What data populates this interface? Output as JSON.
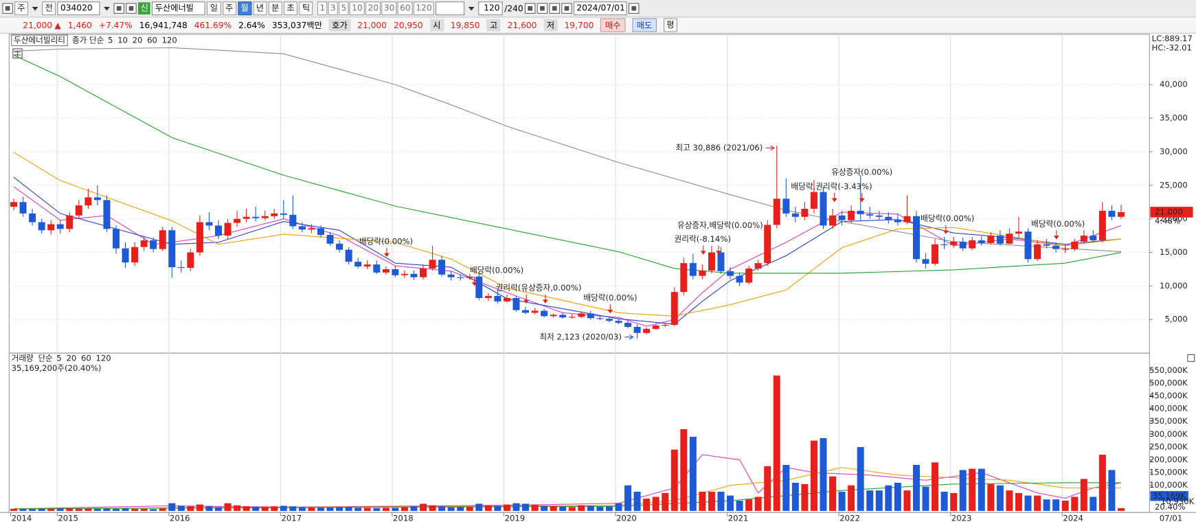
{
  "toolbar": {
    "mode1": "주",
    "mode2": "전",
    "code": "034020",
    "badge": "신",
    "name": "두산에너빌",
    "periods": [
      "일",
      "주",
      "월",
      "년",
      "분",
      "초",
      "틱"
    ],
    "intervals": [
      "1",
      "3",
      "5",
      "10",
      "20",
      "30",
      "60",
      "120"
    ],
    "count": "120",
    "total": "/240",
    "date": "2024/07/01"
  },
  "quote_bar": {
    "price": "21,000",
    "arrow": "▲",
    "change": "1,460",
    "change_pct": "+7.47%",
    "volume": "16,941,748",
    "volume_pct": "461.69%",
    "turnover": "2.64%",
    "amount": "353,037백만",
    "ask_label": "호가",
    "ask": "21,000",
    "bid": "20,950",
    "open_label": "시",
    "open": "19,850",
    "high_label": "고",
    "high": "21,600",
    "low_label": "저",
    "low": "19,700",
    "buy": "매수",
    "sell": "매도",
    "avg": "평"
  },
  "chart_data": [
    {
      "type": "candlestick",
      "title": "두산에너빌리티",
      "ma_label": "종가 단순",
      "open": [
        21800,
        22500,
        20800,
        19500,
        18300,
        19200,
        18500,
        20500,
        22000,
        23200,
        22800,
        18500,
        15600,
        13500,
        15800,
        16800,
        15500,
        18300,
        12800,
        12700,
        15000,
        19500,
        19000,
        17500,
        19400,
        20000,
        20300,
        20100,
        20400,
        20800,
        20600,
        18900,
        18400,
        18600,
        17600,
        16300,
        15400,
        13600,
        12900,
        13200,
        12000,
        12500,
        11600,
        11800,
        11300,
        12600,
        13900,
        11700,
        11300,
        11200,
        11400,
        8200,
        8500,
        7700,
        8200,
        6400,
        6000,
        6300,
        5500,
        5700,
        5300,
        5400,
        5900,
        5200,
        5100,
        4800,
        4500,
        3900,
        3000,
        3600,
        4100,
        4200,
        9100,
        13400,
        11500,
        12300,
        15000,
        12200,
        11500,
        10500,
        12600,
        13400,
        19100,
        23000,
        20800,
        20300,
        21500,
        24000,
        19000,
        20500,
        19800,
        21200,
        20700,
        20500,
        20300,
        19800,
        19500,
        20400,
        14000,
        13300,
        16200,
        16100,
        16600,
        15600,
        16800,
        16400,
        17500,
        16300,
        17800,
        18100,
        14000,
        16200,
        16000,
        15500,
        15500,
        16600,
        17500,
        16800,
        21200,
        20300
      ],
      "high": [
        23000,
        23300,
        21500,
        20000,
        19800,
        19800,
        21000,
        22800,
        24500,
        25000,
        23500,
        19000,
        16500,
        16500,
        17500,
        17200,
        18800,
        18800,
        13800,
        15500,
        20500,
        21000,
        19800,
        20000,
        21200,
        21500,
        21800,
        21200,
        21500,
        22800,
        23500,
        19500,
        19200,
        19000,
        18000,
        16800,
        15800,
        14200,
        13800,
        13800,
        12900,
        13000,
        12300,
        12300,
        13200,
        16000,
        14500,
        12200,
        11800,
        11800,
        11900,
        8900,
        9100,
        8700,
        8500,
        6900,
        6700,
        6600,
        5900,
        6000,
        5800,
        6200,
        6300,
        5600,
        5400,
        5100,
        4800,
        4300,
        3800,
        4300,
        4500,
        9800,
        14200,
        14800,
        13200,
        16000,
        15800,
        12800,
        12000,
        13000,
        13900,
        19800,
        30886,
        26000,
        21800,
        22500,
        25800,
        24700,
        21500,
        21200,
        22000,
        26500,
        21800,
        21200,
        21000,
        20800,
        23500,
        21200,
        14900,
        17000,
        17300,
        17300,
        17200,
        17300,
        17400,
        18000,
        18300,
        18600,
        20300,
        18600,
        16800,
        17000,
        16500,
        16200,
        17000,
        18300,
        18300,
        22500,
        22000,
        22100
      ],
      "low": [
        21300,
        20300,
        19000,
        17800,
        17700,
        17800,
        18000,
        20000,
        21500,
        22000,
        18000,
        14800,
        12700,
        13000,
        15200,
        15000,
        15200,
        11200,
        12000,
        12200,
        14500,
        18300,
        17000,
        17000,
        18800,
        19500,
        19600,
        19800,
        20000,
        20000,
        18500,
        18000,
        17900,
        17200,
        16000,
        15000,
        13200,
        12600,
        12500,
        11800,
        11700,
        11300,
        11200,
        10900,
        11000,
        12300,
        11400,
        10800,
        10800,
        10900,
        7900,
        7800,
        7400,
        7500,
        6200,
        5800,
        5800,
        5300,
        5300,
        5100,
        5100,
        5200,
        5000,
        4900,
        4600,
        4300,
        3700,
        2123,
        2800,
        3500,
        3900,
        4000,
        8600,
        11000,
        11000,
        11900,
        11800,
        11000,
        10000,
        10200,
        12300,
        13000,
        18600,
        20300,
        19500,
        19800,
        20800,
        18500,
        18500,
        19000,
        19400,
        19800,
        20000,
        19900,
        19300,
        19000,
        19200,
        13500,
        12600,
        13000,
        15500,
        15700,
        15200,
        15300,
        16000,
        16200,
        16000,
        16200,
        17200,
        13500,
        13700,
        15600,
        15000,
        14900,
        15200,
        16300,
        16500,
        16500,
        19800,
        20000
      ],
      "close": [
        22500,
        20800,
        19500,
        18300,
        19200,
        18500,
        20500,
        22000,
        23200,
        22800,
        18500,
        15600,
        13500,
        15800,
        16800,
        15500,
        18300,
        12800,
        12700,
        15000,
        19500,
        19000,
        17500,
        19400,
        20000,
        20300,
        20100,
        20400,
        20800,
        20600,
        18900,
        18400,
        18600,
        17600,
        16300,
        15400,
        13600,
        12900,
        13200,
        12000,
        12500,
        11600,
        11800,
        11300,
        12600,
        13900,
        11700,
        11300,
        11200,
        11400,
        8200,
        8500,
        7700,
        8200,
        6400,
        6000,
        6300,
        5500,
        5700,
        5300,
        5400,
        5900,
        5200,
        5100,
        4800,
        4500,
        3900,
        3000,
        3600,
        4100,
        4200,
        9100,
        13400,
        11500,
        12300,
        15000,
        12200,
        11500,
        10500,
        12600,
        13400,
        19100,
        23000,
        20800,
        20300,
        21500,
        24000,
        19000,
        20500,
        19800,
        21200,
        20700,
        20500,
        20300,
        19800,
        19500,
        20400,
        14000,
        13300,
        16200,
        16100,
        16600,
        15600,
        16800,
        16400,
        17500,
        16300,
        17800,
        18100,
        14000,
        16200,
        16000,
        15500,
        15500,
        16600,
        17500,
        16800,
        21200,
        20300,
        21000
      ],
      "up_color": "#e8201b",
      "down_color": "#1f5ad6",
      "ylim": [
        0,
        47500
      ],
      "yticks": [
        {
          "value": 5000,
          "label": "5,000"
        },
        {
          "value": 10000,
          "label": "10,000"
        },
        {
          "value": 15000,
          "label": "15,000"
        },
        {
          "value": 20000,
          "label": "20,000"
        },
        {
          "value": 25000,
          "label": "25,000"
        },
        {
          "value": 30000,
          "label": "30,000"
        },
        {
          "value": 35000,
          "label": "35,000"
        },
        {
          "value": 40000,
          "label": "40,000"
        }
      ],
      "grid": true,
      "ma": [
        {
          "name": "5",
          "color": "#e03cc0",
          "x": [
            0,
            5,
            10,
            15,
            17,
            22,
            29,
            35,
            41,
            47,
            53,
            59,
            65,
            68,
            71,
            74,
            77,
            83,
            89,
            95,
            101,
            107,
            113,
            119
          ],
          "values": [
            24800,
            19800,
            20500,
            16200,
            16500,
            17500,
            20000,
            17500,
            13000,
            12200,
            9000,
            6000,
            5300,
            4000,
            5000,
            9000,
            12500,
            16500,
            21000,
            20700,
            16000,
            17000,
            16000,
            19000
          ]
        },
        {
          "name": "10",
          "color": "#2a3fd0",
          "x": [
            0,
            5,
            17,
            22,
            29,
            35,
            41,
            47,
            53,
            59,
            65,
            71,
            74,
            77,
            83,
            89,
            95,
            101,
            107,
            113,
            119
          ],
          "values": [
            26200,
            20800,
            16200,
            16500,
            19600,
            18300,
            13400,
            12800,
            8100,
            6600,
            5100,
            4300,
            7700,
            10800,
            14500,
            19600,
            19900,
            17900,
            17200,
            16200,
            17000
          ]
        },
        {
          "name": "20",
          "color": "#f0a000",
          "x": [
            0,
            5,
            17,
            22,
            29,
            41,
            47,
            53,
            65,
            71,
            77,
            83,
            89,
            95,
            101,
            107,
            113,
            119
          ],
          "values": [
            29900,
            25700,
            19700,
            16200,
            17700,
            16500,
            14000,
            9700,
            6000,
            5500,
            7200,
            9400,
            15700,
            18500,
            18700,
            17400,
            16000,
            17000
          ]
        },
        {
          "name": "60",
          "color": "#22a02a",
          "x": [
            0,
            5,
            17,
            29,
            41,
            53,
            65,
            71,
            77,
            89,
            101,
            113,
            119
          ],
          "values": [
            44400,
            41200,
            32100,
            26500,
            21900,
            18500,
            15100,
            12600,
            11900,
            11900,
            12400,
            13400,
            15000
          ]
        },
        {
          "name": "120",
          "color": "#8c8c8c",
          "x": [
            0,
            5,
            17,
            29,
            41,
            47,
            53,
            65,
            77,
            83,
            89,
            101,
            113,
            119
          ],
          "values": [
            45000,
            45300,
            45500,
            44600,
            40000,
            37000,
            33800,
            28400,
            23600,
            21300,
            19600,
            16600,
            15600,
            15100
          ]
        }
      ],
      "last_label": "21,000",
      "last_pct": "4.48%",
      "lc": "LC:889.17",
      "hc": "HC:-32.01",
      "high_note": "최고 30,886 (2021/06)",
      "low_note": "최저 2,123 (2020/03)",
      "annotations": [
        "배당락(0.00%)",
        "배당락(0.00%)",
        "권리락(유상증자,0.00%)",
        "배당락(0.00%)",
        "유상증자,배당락(0.00%)",
        "권리락(-8.14%)",
        "유상증자(0.00%)",
        "배당락,권리락(-3.43%)",
        "배당락(0.00%)",
        "배당락(0.00%)"
      ]
    },
    {
      "type": "bar",
      "title": "거래량",
      "ma_label": "단순",
      "info": "35,169,200주(20.40%)",
      "categories": [
        "2014",
        null,
        null,
        null,
        null,
        "2015",
        null,
        null,
        null,
        null,
        null,
        null,
        null,
        null,
        null,
        null,
        null,
        "2016",
        null,
        null,
        null,
        null,
        null,
        null,
        null,
        null,
        null,
        null,
        null,
        "2017",
        null,
        null,
        null,
        null,
        null,
        null,
        null,
        null,
        null,
        null,
        null,
        "2018",
        null,
        null,
        null,
        null,
        null,
        null,
        null,
        null,
        null,
        null,
        null,
        "2019",
        null,
        null,
        null,
        null,
        null,
        null,
        null,
        null,
        null,
        null,
        null,
        "2020",
        null,
        null,
        null,
        null,
        null,
        null,
        null,
        null,
        null,
        null,
        null,
        "2021",
        null,
        null,
        null,
        null,
        null,
        null,
        null,
        null,
        null,
        null,
        null,
        "2022",
        null,
        null,
        null,
        null,
        null,
        null,
        null,
        null,
        null,
        null,
        null,
        "2023",
        null,
        null,
        null,
        null,
        null,
        null,
        null,
        null,
        null,
        null,
        null,
        "2024",
        null,
        null,
        null,
        null,
        null,
        null
      ],
      "values": [
        8000,
        7000,
        7000,
        8000,
        8000,
        9000,
        9000,
        8000,
        9000,
        8000,
        9000,
        8000,
        9000,
        8000,
        8000,
        7000,
        9000,
        30000,
        20000,
        18000,
        25000,
        18000,
        15000,
        30000,
        22000,
        18000,
        16000,
        17000,
        18000,
        20000,
        18000,
        15000,
        14000,
        12000,
        13000,
        14000,
        15000,
        12000,
        12000,
        11000,
        12000,
        12000,
        14000,
        18000,
        28000,
        22000,
        18000,
        14000,
        15000,
        16000,
        28000,
        22000,
        20000,
        25000,
        30000,
        28000,
        24000,
        20000,
        18000,
        16000,
        15000,
        22000,
        20000,
        16000,
        18000,
        30000,
        100000,
        75000,
        48000,
        55000,
        70000,
        240000,
        320000,
        290000,
        75000,
        75000,
        75000,
        60000,
        40000,
        45000,
        55000,
        175000,
        530000,
        180000,
        110000,
        105000,
        275000,
        285000,
        135000,
        75000,
        100000,
        250000,
        80000,
        80000,
        100000,
        110000,
        80000,
        180000,
        95000,
        190000,
        75000,
        70000,
        160000,
        165000,
        165000,
        105000,
        100000,
        80000,
        70000,
        60000,
        60000,
        45000,
        45000,
        40000,
        55000,
        125000,
        55000,
        220000,
        160000,
        10930
      ],
      "ylim": [
        0,
        600000
      ],
      "yticks": [
        {
          "value": 50000,
          "label": "50,000K"
        },
        {
          "value": 100000,
          "label": "100,000K"
        },
        {
          "value": 150000,
          "label": "150,000K"
        },
        {
          "value": 200000,
          "label": "200,000K"
        },
        {
          "value": 250000,
          "label": "250,000K"
        },
        {
          "value": 300000,
          "label": "300,000K"
        },
        {
          "value": 350000,
          "label": "350,000K"
        },
        {
          "value": 400000,
          "label": "400,000K"
        },
        {
          "value": 450000,
          "label": "450,000K"
        },
        {
          "value": 500000,
          "label": "500,000K"
        },
        {
          "value": 550000,
          "label": "550,000K"
        }
      ],
      "ma": [
        {
          "name": "5",
          "color": "#e03cc0",
          "x": [
            0,
            17,
            29,
            53,
            65,
            71,
            74,
            78,
            80,
            83,
            86,
            92,
            98,
            104,
            110,
            113,
            116,
            119
          ],
          "values": [
            8000,
            20000,
            15000,
            22000,
            30000,
            90000,
            220000,
            200000,
            70000,
            170000,
            150000,
            140000,
            120000,
            150000,
            70000,
            50000,
            90000,
            110000
          ]
        },
        {
          "name": "20",
          "color": "#f0a000",
          "x": [
            0,
            17,
            41,
            65,
            71,
            77,
            83,
            89,
            95,
            101,
            107,
            113,
            119
          ],
          "values": [
            8000,
            12000,
            16000,
            22000,
            40000,
            100000,
            120000,
            170000,
            140000,
            130000,
            120000,
            90000,
            90000
          ]
        },
        {
          "name": "60",
          "color": "#22a02a",
          "x": [
            0,
            41,
            65,
            77,
            89,
            101,
            113,
            119
          ],
          "values": [
            8000,
            15000,
            18000,
            40000,
            80000,
            105000,
            110000,
            110000
          ]
        },
        {
          "name": "120",
          "color": "#8c8c8c",
          "x": [],
          "values": []
        }
      ],
      "ma_value_label": "35,169K",
      "last_value_label": "10,930K",
      "ratio_label": "20.40%",
      "end_date": "07/01"
    }
  ]
}
